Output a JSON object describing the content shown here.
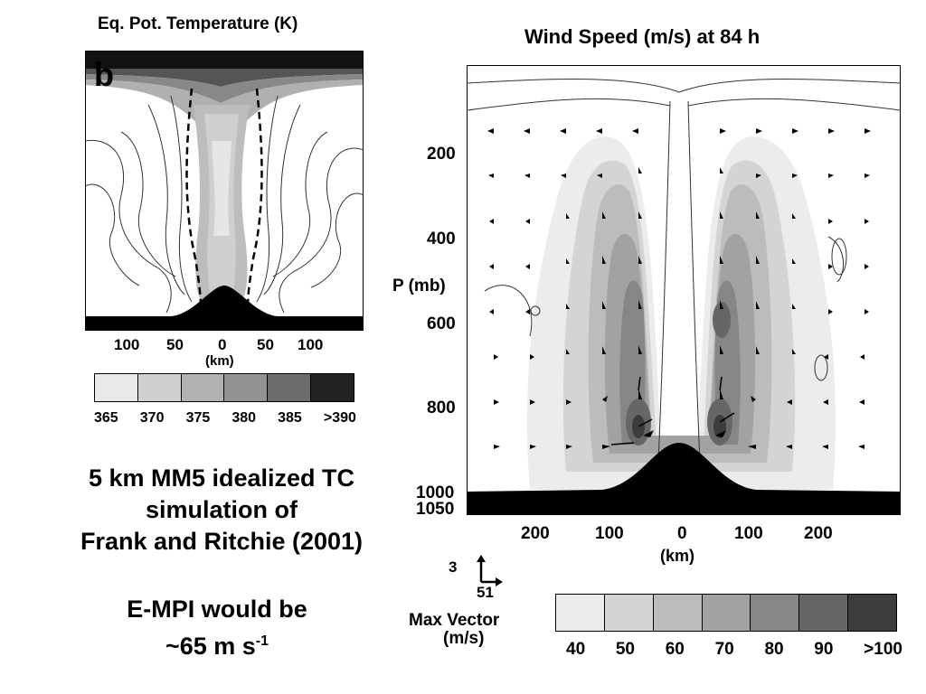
{
  "left_panel": {
    "title": "Eq. Pot. Temperature (K)",
    "panel_label": "b",
    "x_ticks": [
      "100",
      "50",
      "0",
      "50",
      "100"
    ],
    "x_unit": "(km)",
    "legend": {
      "labels": [
        "365",
        "370",
        "375",
        "380",
        "385",
        ">390"
      ],
      "colors": [
        "#e9e9e9",
        "#cfcfcf",
        "#b2b2b2",
        "#929292",
        "#6c6c6c",
        "#222222"
      ]
    }
  },
  "right_panel": {
    "title": "Wind Speed (m/s)  at 84 h",
    "y_label": "P (mb)",
    "y_ticks": [
      "200",
      "400",
      "600",
      "800",
      "1000",
      "1050"
    ],
    "x_ticks": [
      "200",
      "100",
      "0",
      "100",
      "200"
    ],
    "x_unit": "(km)",
    "vector_key": {
      "vertical_value": "3",
      "horizontal_value": "51",
      "label_line1": "Max Vector",
      "label_line2": "(m/s)"
    },
    "legend": {
      "labels": [
        "40",
        "50",
        "60",
        "70",
        "80",
        "90",
        ">100"
      ],
      "colors": [
        "#ececec",
        "#d4d4d4",
        "#bcbcbc",
        "#a2a2a2",
        "#868686",
        "#666666",
        "#3c3c3c"
      ]
    }
  },
  "caption": {
    "line1": "5 km MM5 idealized TC",
    "line2": "simulation of",
    "line3": "Frank and Ritchie (2001)",
    "mpi_line1": "E-MPI would be",
    "mpi_line2_prefix": "~65 m s",
    "mpi_line2_sup": "-1"
  }
}
